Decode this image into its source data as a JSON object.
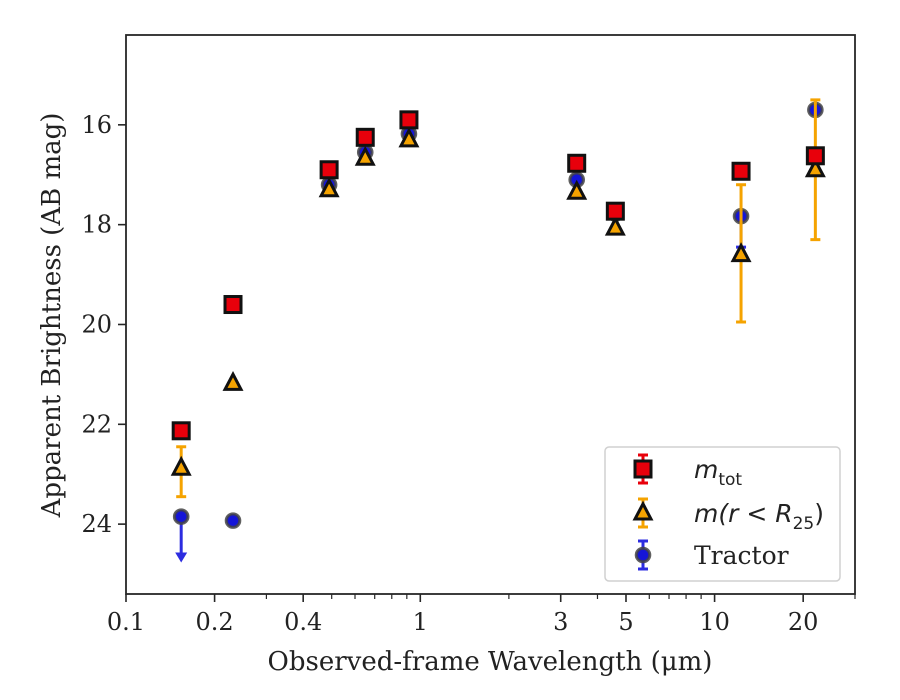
{
  "chart_data": {
    "type": "scatter",
    "xlabel": "Observed-frame Wavelength (μm)",
    "ylabel": "Apparent Brightness (AB mag)",
    "xscale": "log",
    "xlim": [
      0.1,
      30
    ],
    "ylim": [
      25.4,
      14.2
    ],
    "y_inverted": true,
    "grid": false,
    "legend_position": "lower-right",
    "xticks": [
      {
        "value": 0.1,
        "label": "0.1"
      },
      {
        "value": 0.2,
        "label": "0.2"
      },
      {
        "value": 0.4,
        "label": "0.4"
      },
      {
        "value": 1,
        "label": "1"
      },
      {
        "value": 3,
        "label": "3"
      },
      {
        "value": 5,
        "label": "5"
      },
      {
        "value": 10,
        "label": "10"
      },
      {
        "value": 20,
        "label": "20"
      }
    ],
    "yticks": [
      {
        "value": 16,
        "label": "16"
      },
      {
        "value": 18,
        "label": "18"
      },
      {
        "value": 20,
        "label": "20"
      },
      {
        "value": 22,
        "label": "22"
      },
      {
        "value": 24,
        "label": "24"
      }
    ],
    "series": [
      {
        "key": "mtot",
        "legend_main": "m",
        "legend_sub": "tot",
        "marker": "square",
        "color": "#e8000b",
        "errcolor": "#e8000b",
        "points": [
          {
            "x": 0.154,
            "y": 22.13
          },
          {
            "x": 0.231,
            "y": 19.6
          },
          {
            "x": 0.49,
            "y": 16.9
          },
          {
            "x": 0.65,
            "y": 16.25
          },
          {
            "x": 0.915,
            "y": 15.9
          },
          {
            "x": 3.4,
            "y": 16.77
          },
          {
            "x": 4.6,
            "y": 17.73
          },
          {
            "x": 12.3,
            "y": 16.93
          },
          {
            "x": 22.0,
            "y": 16.62
          }
        ]
      },
      {
        "key": "mr25",
        "legend_main": "m(r < R",
        "legend_sub": "25",
        "legend_tail": ")",
        "marker": "triangle",
        "color": "#f5a300",
        "errcolor": "#f5a300",
        "points": [
          {
            "x": 0.154,
            "y": 22.88,
            "ylow": 22.45,
            "yhigh": 23.45
          },
          {
            "x": 0.231,
            "y": 21.18
          },
          {
            "x": 0.49,
            "y": 17.3
          },
          {
            "x": 0.65,
            "y": 16.67
          },
          {
            "x": 0.915,
            "y": 16.3
          },
          {
            "x": 3.4,
            "y": 17.35
          },
          {
            "x": 4.6,
            "y": 18.07
          },
          {
            "x": 12.3,
            "y": 18.6,
            "ylow": 17.2,
            "yhigh": 19.95
          },
          {
            "x": 22.0,
            "y": 16.9,
            "ylow": 15.5,
            "yhigh": 18.3
          }
        ]
      },
      {
        "key": "tractor",
        "legend_main": "Tractor",
        "marker": "circle",
        "color": "#1515d8",
        "errcolor": "#2c2ce0",
        "points": [
          {
            "x": 0.154,
            "y": 23.85,
            "upper_limit": true,
            "arrow_to": 24.75
          },
          {
            "x": 0.231,
            "y": 23.93
          },
          {
            "x": 0.49,
            "y": 17.2
          },
          {
            "x": 0.65,
            "y": 16.55
          },
          {
            "x": 0.915,
            "y": 16.18
          },
          {
            "x": 3.4,
            "y": 17.1
          },
          {
            "x": 4.6,
            "y": 17.78
          },
          {
            "x": 12.3,
            "y": 17.83,
            "ylow": 17.83,
            "yhigh": 18.45
          },
          {
            "x": 22.0,
            "y": 15.7
          }
        ]
      }
    ]
  }
}
